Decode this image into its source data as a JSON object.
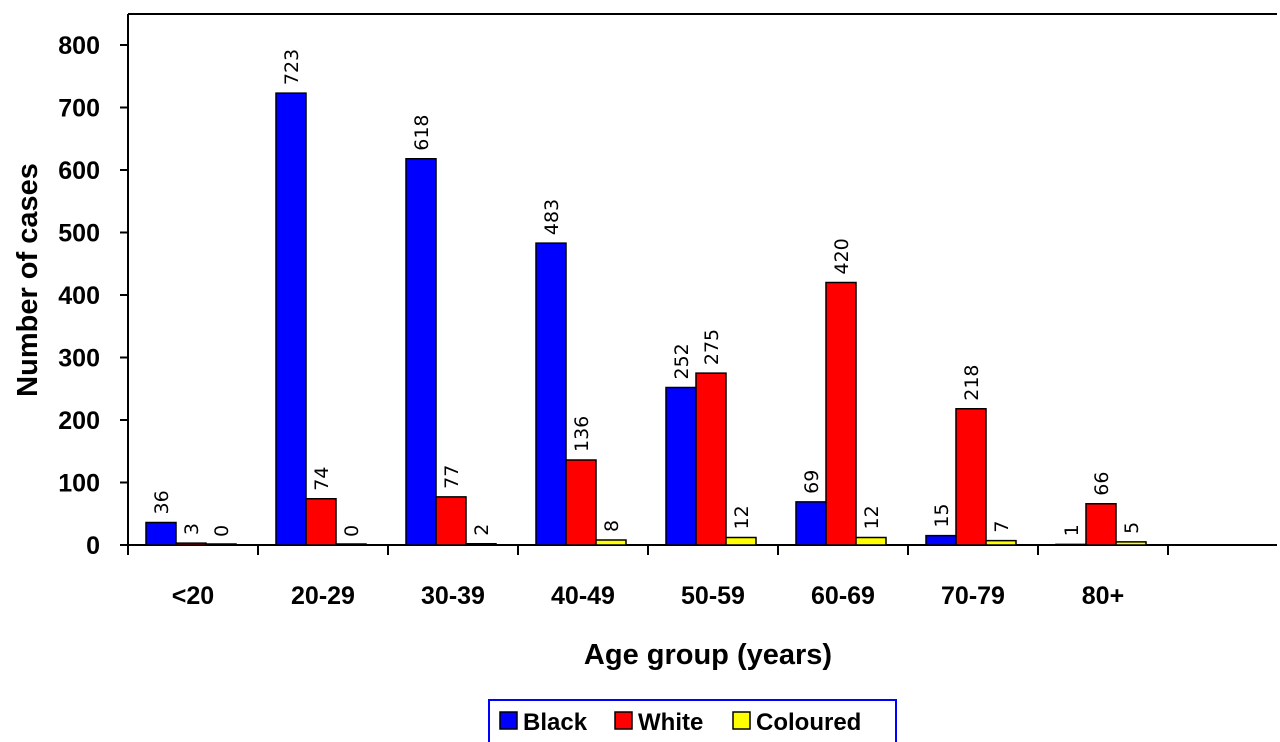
{
  "chart_data": {
    "type": "bar",
    "title": "",
    "xlabel": "Age group (years)",
    "ylabel": "Number of cases",
    "categories": [
      "<20",
      "20-29",
      "30-39",
      "40-49",
      "50-59",
      "60-69",
      "70-79",
      "80+"
    ],
    "series": [
      {
        "name": "Black",
        "color": "#0000FF",
        "values": [
          36,
          723,
          618,
          483,
          252,
          69,
          15,
          1
        ]
      },
      {
        "name": "White",
        "color": "#FF0000",
        "values": [
          3,
          74,
          77,
          136,
          275,
          420,
          218,
          66
        ]
      },
      {
        "name": "Coloured",
        "color": "#FFFF00",
        "values": [
          0,
          0,
          2,
          8,
          12,
          12,
          7,
          5
        ]
      }
    ],
    "ylim": [
      0,
      800
    ],
    "yticks": [
      0,
      100,
      200,
      300,
      400,
      500,
      600,
      700,
      800
    ],
    "ytick_labels": [
      "0",
      "100",
      "200",
      "300",
      "400",
      "500",
      "600",
      "700",
      "800"
    ],
    "grid": false,
    "data_labels": true,
    "legend_position": "bottom"
  }
}
